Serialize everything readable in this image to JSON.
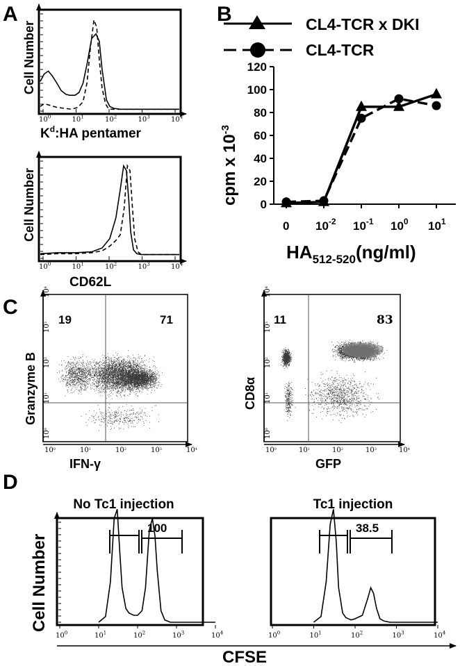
{
  "panels": {
    "A": "A",
    "B": "B",
    "C": "C",
    "D": "D"
  },
  "chart_data": [
    {
      "id": "A-top",
      "type": "histogram",
      "ylabel": "Cell Number",
      "xlabel_prefix": "K",
      "xlabel_sup": "d",
      "xlabel_suffix": ":HA pentamer",
      "xscale": "log",
      "xlim": [
        1,
        10000
      ],
      "xticks": [
        {
          "base": "10",
          "exp": "0"
        },
        {
          "base": "10",
          "exp": "1"
        },
        {
          "base": "10",
          "exp": "2"
        },
        {
          "base": "10",
          "exp": "3"
        },
        {
          "base": "10",
          "exp": "4"
        }
      ],
      "series": [
        {
          "style": "solid",
          "x": [
            1,
            1.3,
            1.7,
            2.2,
            3,
            4,
            5.5,
            7,
            10,
            13,
            17,
            22,
            30,
            40,
            50,
            60,
            80,
            100,
            130,
            200,
            500,
            1000,
            10000
          ],
          "y": [
            0.32,
            0.4,
            0.43,
            0.38,
            0.3,
            0.22,
            0.18,
            0.17,
            0.17,
            0.2,
            0.3,
            0.5,
            0.78,
            0.83,
            0.75,
            0.45,
            0.12,
            0.05,
            0.03,
            0.02,
            0.02,
            0.02,
            0.02
          ]
        },
        {
          "style": "dashed",
          "x": [
            1,
            1.3,
            2,
            3,
            5,
            8,
            12,
            17,
            22,
            28,
            35,
            42,
            50,
            60,
            75,
            90,
            110,
            150,
            300,
            10000
          ],
          "y": [
            0.05,
            0.08,
            0.06,
            0.04,
            0.03,
            0.02,
            0.04,
            0.1,
            0.3,
            0.7,
            0.98,
            0.9,
            0.55,
            0.25,
            0.08,
            0.03,
            0.02,
            0.02,
            0.02,
            0.02
          ]
        }
      ]
    },
    {
      "id": "A-bottom",
      "type": "histogram",
      "ylabel": "Cell Number",
      "xlabel": "CD62L",
      "xscale": "log",
      "xlim": [
        1,
        10000
      ],
      "xticks": [
        {
          "base": "10",
          "exp": "0"
        },
        {
          "base": "10",
          "exp": "1"
        },
        {
          "base": "10",
          "exp": "2"
        },
        {
          "base": "10",
          "exp": "3"
        },
        {
          "base": "10",
          "exp": "4"
        }
      ],
      "series": [
        {
          "style": "solid",
          "x": [
            1,
            3,
            10,
            30,
            60,
            100,
            150,
            200,
            250,
            300,
            350,
            400,
            480,
            600,
            800,
            10000
          ],
          "y": [
            0.02,
            0.03,
            0.03,
            0.04,
            0.08,
            0.18,
            0.4,
            0.7,
            0.95,
            0.9,
            0.6,
            0.25,
            0.06,
            0.02,
            0.01,
            0.01
          ]
        },
        {
          "style": "dashed",
          "x": [
            1,
            3,
            10,
            30,
            60,
            100,
            150,
            200,
            260,
            320,
            380,
            440,
            520,
            650,
            800,
            10000
          ],
          "y": [
            0.01,
            0.02,
            0.02,
            0.03,
            0.05,
            0.1,
            0.16,
            0.22,
            0.5,
            0.95,
            0.9,
            0.55,
            0.18,
            0.04,
            0.01,
            0.01
          ]
        }
      ]
    },
    {
      "id": "B",
      "type": "line",
      "ylabel_main": "cpm x 10",
      "ylabel_sup": "-3",
      "xlabel_main": "HA",
      "xlabel_sub": "512-520",
      "xlabel_suffix": "(ng/ml)",
      "categories": [
        {
          "base": "0",
          "exp": ""
        },
        {
          "base": "10",
          "exp": "-2"
        },
        {
          "base": "10",
          "exp": "-1"
        },
        {
          "base": "10",
          "exp": "0"
        },
        {
          "base": "10",
          "exp": "1"
        }
      ],
      "ylim": [
        0,
        120
      ],
      "yticks": [
        "0",
        "20",
        "40",
        "60",
        "80",
        "100",
        "120"
      ],
      "series": [
        {
          "name": "CL4-TCR x DKI",
          "marker": "triangle",
          "style": "solid",
          "values": [
            1,
            2,
            85,
            85,
            96
          ]
        },
        {
          "name": "CL4-TCR",
          "marker": "circle",
          "style": "dashed",
          "values": [
            2,
            3,
            75,
            92,
            86
          ]
        }
      ]
    },
    {
      "id": "C-left",
      "type": "scatter",
      "ylabel": "Granzyme B",
      "xlabel": "IFN-γ",
      "xscale": "log",
      "yscale": "log",
      "quadrant_percent": {
        "top_left": "19",
        "top_right": "71"
      }
    },
    {
      "id": "C-right",
      "type": "scatter",
      "ylabel": "CD8α",
      "xlabel": "GFP",
      "xscale": "log",
      "yscale": "log",
      "quadrant_percent": {
        "top_left": "11",
        "top_right": "83"
      }
    },
    {
      "id": "D-left",
      "type": "histogram",
      "title": "No Tc1 injection",
      "value_label": "100",
      "xscale": "log",
      "xlim": [
        1,
        10000
      ],
      "xticks": [
        {
          "base": "10",
          "exp": "0"
        },
        {
          "base": "10",
          "exp": "1"
        },
        {
          "base": "10",
          "exp": "2"
        },
        {
          "base": "10",
          "exp": "3"
        },
        {
          "base": "10",
          "exp": "4"
        }
      ],
      "series": [
        {
          "style": "solid",
          "x": [
            10,
            15,
            20,
            25,
            30,
            35,
            40,
            50,
            60,
            80,
            100,
            130,
            160,
            200,
            240,
            280,
            320,
            400,
            500,
            700,
            10000
          ],
          "y": [
            0,
            0.05,
            0.35,
            0.9,
            0.98,
            0.6,
            0.3,
            0.12,
            0.08,
            0.06,
            0.06,
            0.1,
            0.3,
            0.8,
            0.9,
            0.75,
            0.45,
            0.1,
            0.02,
            0,
            0
          ]
        }
      ]
    },
    {
      "id": "D-right",
      "type": "histogram",
      "title": "Tc1 injection",
      "value_label": "38.5",
      "xscale": "log",
      "xlim": [
        1,
        10000
      ],
      "xticks": [
        {
          "base": "10",
          "exp": "0"
        },
        {
          "base": "10",
          "exp": "1"
        },
        {
          "base": "10",
          "exp": "2"
        },
        {
          "base": "10",
          "exp": "3"
        },
        {
          "base": "10",
          "exp": "4"
        }
      ],
      "series": [
        {
          "style": "solid",
          "x": [
            10,
            15,
            20,
            25,
            30,
            35,
            40,
            50,
            60,
            80,
            100,
            150,
            200,
            240,
            280,
            330,
            400,
            500,
            700,
            10000
          ],
          "y": [
            0,
            0.05,
            0.35,
            0.85,
            0.98,
            0.7,
            0.3,
            0.08,
            0.04,
            0.02,
            0.03,
            0.06,
            0.2,
            0.3,
            0.25,
            0.12,
            0.03,
            0.01,
            0,
            0
          ]
        }
      ]
    }
  ],
  "d_ylabel": "Cell Number",
  "d_xlabel": "CFSE"
}
